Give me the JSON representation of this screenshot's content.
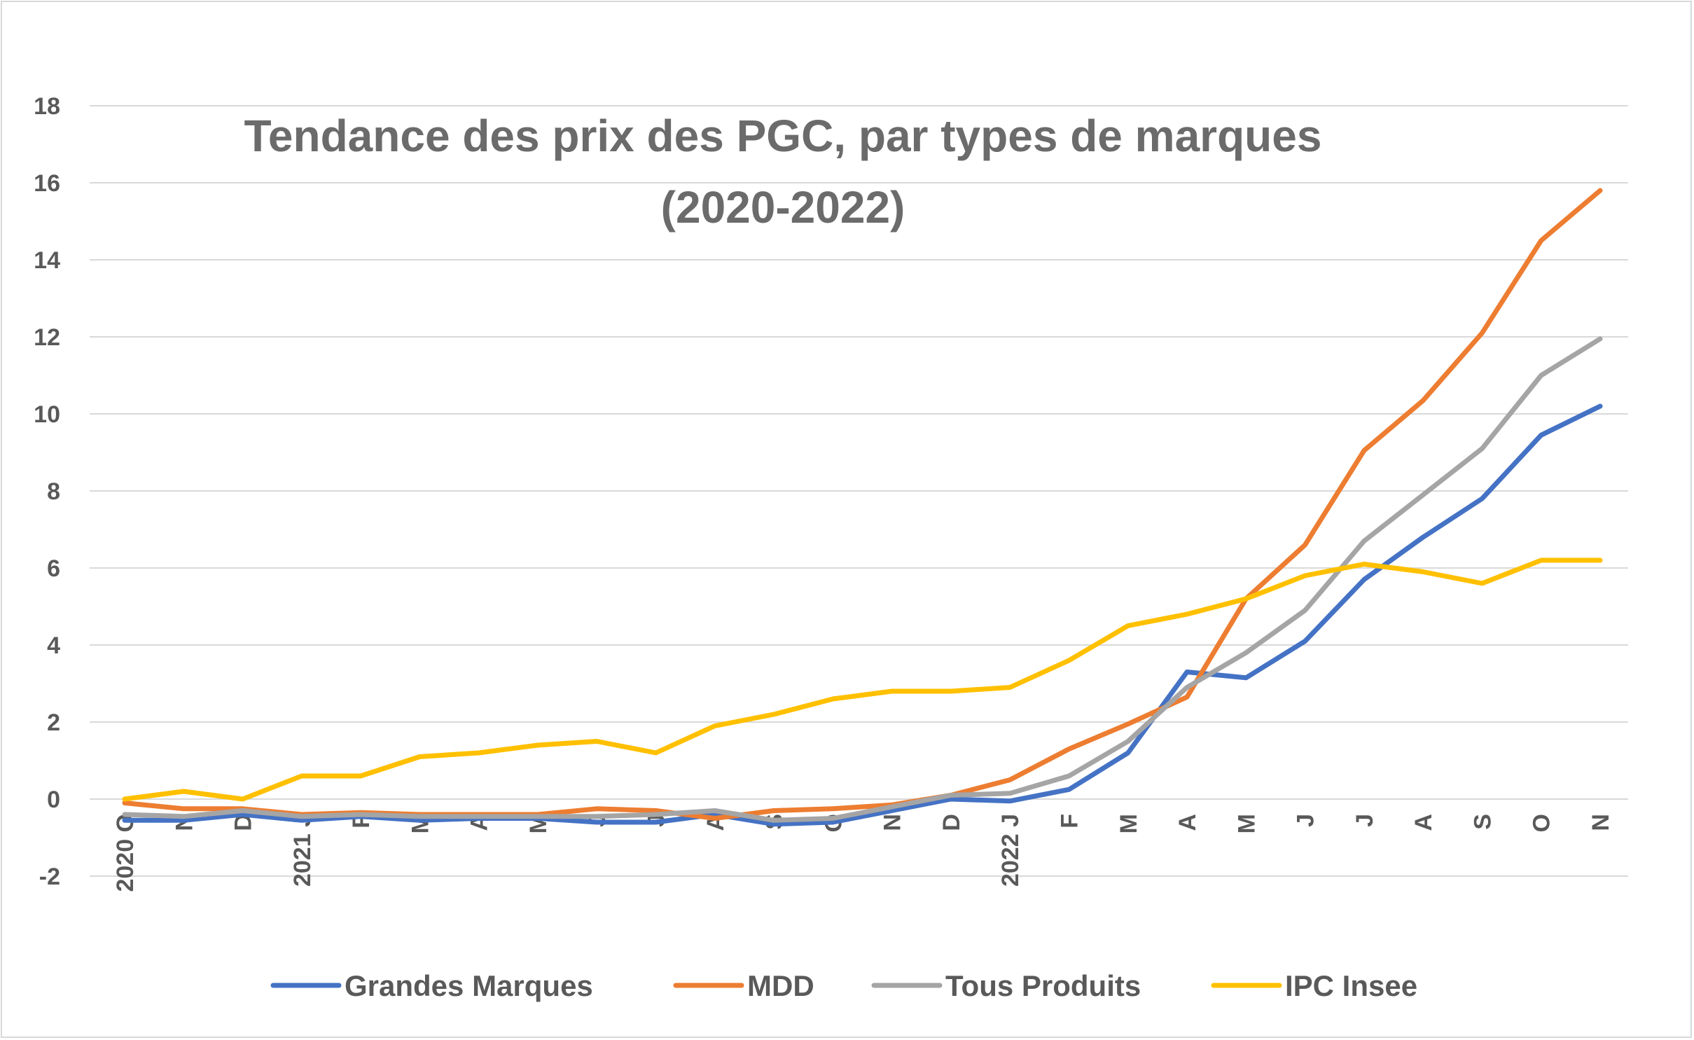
{
  "chart_data": {
    "type": "line",
    "title_line1": "Tendance des prix des PGC, par types de marques",
    "title_line2": "(2020-2022)",
    "xlabel": "",
    "ylabel": "",
    "ylim": [
      -2,
      18
    ],
    "yticks": [
      -2,
      0,
      2,
      4,
      6,
      8,
      10,
      12,
      14,
      16,
      18
    ],
    "categories": [
      "2020 O",
      "N",
      "D",
      "2021 J",
      "F",
      "M",
      "A",
      "M",
      "J",
      "J",
      "A",
      "S",
      "O",
      "N",
      "D",
      "2022 J",
      "F",
      "M",
      "A",
      "M",
      "J",
      "J",
      "A",
      "S",
      "O",
      "N"
    ],
    "grid": true,
    "legend_position": "bottom",
    "series": [
      {
        "name": "Grandes Marques",
        "color": "#4472c4",
        "values": [
          -0.55,
          -0.55,
          -0.4,
          -0.55,
          -0.45,
          -0.55,
          -0.5,
          -0.5,
          -0.6,
          -0.6,
          -0.4,
          -0.65,
          -0.6,
          -0.3,
          0.0,
          -0.05,
          0.25,
          1.2,
          3.3,
          3.15,
          4.1,
          5.7,
          6.8,
          7.8,
          9.45,
          10.2
        ]
      },
      {
        "name": "MDD",
        "color": "#ed7d31",
        "values": [
          -0.1,
          -0.25,
          -0.25,
          -0.4,
          -0.35,
          -0.4,
          -0.4,
          -0.4,
          -0.25,
          -0.3,
          -0.5,
          -0.3,
          -0.25,
          -0.15,
          0.1,
          0.5,
          1.3,
          1.95,
          2.65,
          5.2,
          6.6,
          9.05,
          10.35,
          12.1,
          14.5,
          15.8
        ]
      },
      {
        "name": "Tous Produits",
        "color": "#a5a5a5",
        "values": [
          -0.4,
          -0.45,
          -0.3,
          -0.45,
          -0.4,
          -0.45,
          -0.45,
          -0.45,
          -0.45,
          -0.4,
          -0.3,
          -0.55,
          -0.5,
          -0.2,
          0.1,
          0.15,
          0.6,
          1.5,
          2.9,
          3.8,
          4.9,
          6.7,
          7.9,
          9.1,
          11.0,
          11.95
        ]
      },
      {
        "name": "IPC Insee",
        "color": "#ffc000",
        "values": [
          0.0,
          0.2,
          0.0,
          0.6,
          0.6,
          1.1,
          1.2,
          1.4,
          1.5,
          1.2,
          1.9,
          2.2,
          2.6,
          2.8,
          2.8,
          2.9,
          3.6,
          4.5,
          4.8,
          5.2,
          5.8,
          6.1,
          5.9,
          5.6,
          6.2,
          6.2
        ]
      }
    ]
  }
}
